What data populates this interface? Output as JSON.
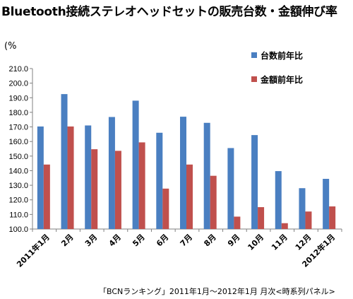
{
  "chart_data": {
    "type": "bar",
    "title": "Bluetooth接続ステレオヘッドセットの販売台数・金額伸び率",
    "ylabel": "(%",
    "ylim": [
      100,
      210
    ],
    "yticks": [
      "100.0",
      "110.0",
      "120.0",
      "130.0",
      "140.0",
      "150.0",
      "160.0",
      "170.0",
      "180.0",
      "190.0",
      "200.0",
      "210.0"
    ],
    "categories": [
      "2011年1月",
      "2月",
      "3月",
      "4月",
      "5月",
      "6月",
      "7月",
      "8月",
      "9月",
      "10月",
      "11月",
      "12月",
      "2012年1月"
    ],
    "series": [
      {
        "name": "台数前年比",
        "color": "#4a7fc1",
        "values": [
          170.3,
          192.5,
          171.0,
          176.8,
          188.0,
          166.0,
          177.0,
          172.8,
          155.5,
          164.4,
          139.7,
          128.0,
          134.4
        ]
      },
      {
        "name": "金額前年比",
        "color": "#c0504d",
        "values": [
          144.2,
          170.3,
          154.7,
          153.6,
          159.4,
          127.7,
          144.2,
          136.5,
          108.5,
          115.0,
          104.0,
          112.0,
          115.5
        ]
      }
    ],
    "legend_position": "top-right",
    "grid": false,
    "source": "「BCNランキング」2011年1月〜2012年1月 月次<時系列パネル>"
  }
}
